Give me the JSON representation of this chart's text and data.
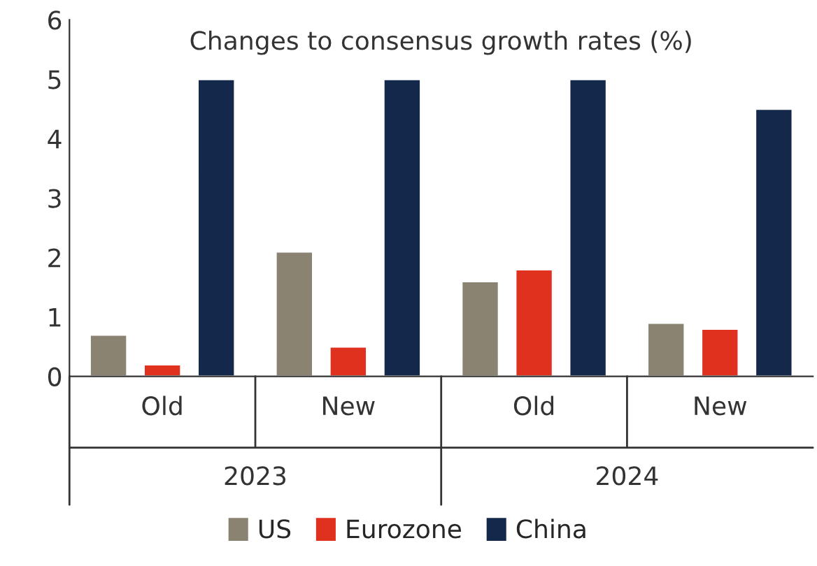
{
  "chart_data": {
    "type": "bar",
    "title": "Changes to consensus growth rates (%)",
    "categories": [
      "Old",
      "New",
      "Old",
      "New"
    ],
    "series": [
      {
        "name": "US",
        "color": "#8b8372",
        "values": [
          0.7,
          2.1,
          1.6,
          0.9
        ]
      },
      {
        "name": "Eurozone",
        "color": "#e0301e",
        "values": [
          0.2,
          0.5,
          1.8,
          0.8
        ]
      },
      {
        "name": "China",
        "color": "#14284b",
        "values": [
          5,
          5,
          5,
          4.5
        ]
      }
    ],
    "annotations": [
      "2023",
      "2024"
    ],
    "ylim": [
      0,
      6
    ],
    "yticks": [
      0,
      1,
      2,
      3,
      4,
      5,
      6
    ],
    "grid": false,
    "legend": "bottom"
  }
}
